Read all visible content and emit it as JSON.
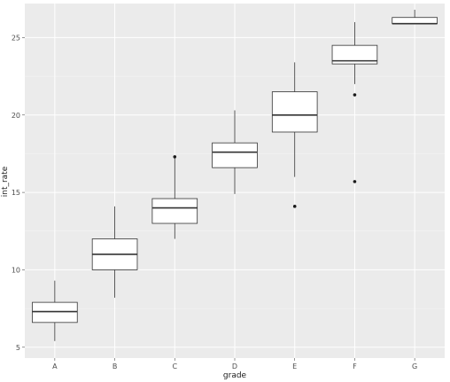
{
  "chart_data": {
    "type": "box",
    "xlabel": "grade",
    "ylabel": "int_rate",
    "categories": [
      "A",
      "B",
      "C",
      "D",
      "E",
      "F",
      "G"
    ],
    "ylim": [
      4.3,
      27.2
    ],
    "yticks": [
      5,
      10,
      15,
      20,
      25
    ],
    "grid": true,
    "boxes": [
      {
        "category": "A",
        "whisker_low": 5.4,
        "q1": 6.6,
        "median": 7.3,
        "q3": 7.9,
        "whisker_high": 9.3,
        "outliers": []
      },
      {
        "category": "B",
        "whisker_low": 8.2,
        "q1": 10.0,
        "median": 11.0,
        "q3": 12.0,
        "whisker_high": 14.1,
        "outliers": []
      },
      {
        "category": "C",
        "whisker_low": 12.0,
        "q1": 13.0,
        "median": 14.0,
        "q3": 14.6,
        "whisker_high": 17.2,
        "outliers": [
          17.3
        ]
      },
      {
        "category": "D",
        "whisker_low": 14.9,
        "q1": 16.6,
        "median": 17.6,
        "q3": 18.2,
        "whisker_high": 20.3,
        "outliers": []
      },
      {
        "category": "E",
        "whisker_low": 16.0,
        "q1": 18.9,
        "median": 20.0,
        "q3": 21.5,
        "whisker_high": 23.4,
        "outliers": [
          14.1
        ]
      },
      {
        "category": "F",
        "whisker_low": 22.0,
        "q1": 23.3,
        "median": 23.5,
        "q3": 24.5,
        "whisker_high": 26.0,
        "outliers": [
          21.3,
          15.7
        ]
      },
      {
        "category": "G",
        "whisker_low": 25.9,
        "q1": 25.9,
        "median": 25.9,
        "q3": 26.3,
        "whisker_high": 26.8,
        "outliers": []
      }
    ]
  },
  "colors": {
    "panel": "#ebebeb",
    "grid_major": "#ffffff",
    "box_fill": "#ffffff",
    "box_stroke": "#333333",
    "outlier": "#1a1a1a"
  }
}
